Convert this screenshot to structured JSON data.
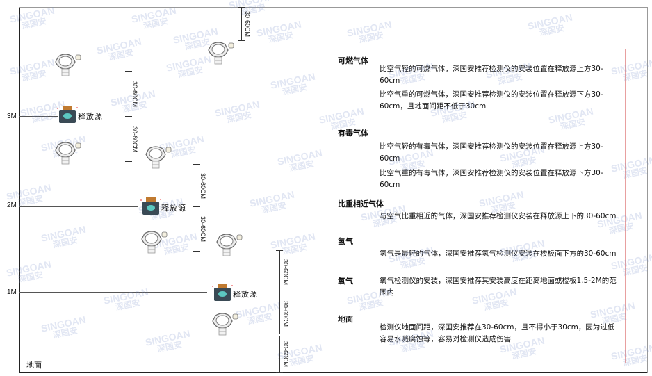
{
  "watermark": {
    "brand": "SINGOAN",
    "cn": "深国安"
  },
  "levels": [
    "3M",
    "2M",
    "1M"
  ],
  "ground_label": "地面",
  "source_label": "释放源",
  "dimension_label": "30-60CM",
  "colors": {
    "box_border": "#e8a0a0",
    "source_body": "#3a4a55",
    "source_cap": "#c07a30",
    "source_face": "#5cc8c0"
  },
  "notes": [
    {
      "title": "可燃气体",
      "paras": [
        "比空气轻的可燃气体，深国安推荐检测仪的安装位置在释放源上方30-60cm",
        "比空气重的可燃气体，深国安推荐检测仪的安装位置在释放源下方30-60cm，且地面间距不低于30cm"
      ]
    },
    {
      "title": "有毒气体",
      "paras": [
        "比空气轻的有毒气体，深国安推荐检测仪的安装位置在释放源上方30-60cm",
        "比空气重的有毒气体，深国安推荐检测仪的安装位置在释放源下方30-60cm"
      ]
    },
    {
      "title": "比重相近气体",
      "paras": [
        "与空气比重相近的气体，深国安推荐检测仪安装在释放源上下的30-60cm"
      ]
    },
    {
      "title": "氢气",
      "paras": [
        "氢气是最轻的气体，深国安推荐氢气检测仪安装在楼板面下方的30-60cm"
      ]
    },
    {
      "title": "氧气",
      "paras": [
        "氧气检测仪的安装，深国安推荐其安装高度在距离地面或楼板1.5-2M的范围内"
      ]
    },
    {
      "title": "地面",
      "paras": [
        "检测仪地面间距，深国安推荐在30-60cm，且不得小于30cm，因为过低容易水溅腐蚀等，容易对检测仪造成伤害"
      ]
    }
  ]
}
